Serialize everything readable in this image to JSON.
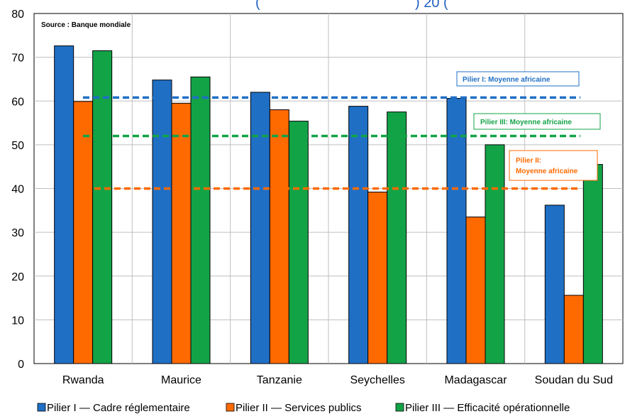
{
  "chart_data": {
    "type": "bar",
    "title_fragment_left": "(",
    "title_fragment_right": ") 20  (",
    "source_note": "Source : Banque mondiale",
    "categories": [
      "Rwanda",
      "Maurice",
      "Tanzanie",
      "Seychelles",
      "Madagascar",
      "Soudan du Sud"
    ],
    "ylim": [
      0,
      80
    ],
    "yticks": [
      0,
      10,
      20,
      30,
      40,
      50,
      60,
      70,
      80
    ],
    "grid": true,
    "series": [
      {
        "name": "Pilier I — Cadre réglementaire",
        "color": "#1f6fc5",
        "values": [
          72.6,
          64.8,
          62.0,
          58.8,
          60.6,
          36.2
        ]
      },
      {
        "name": "Pilier II — Services publics",
        "color": "#ff6a00",
        "values": [
          59.9,
          59.5,
          58.0,
          39.2,
          33.5,
          15.6
        ]
      },
      {
        "name": "Pilier III — Efficacité opérationnelle",
        "color": "#13a347",
        "values": [
          71.5,
          65.5,
          55.4,
          57.5,
          50.0,
          45.5
        ]
      }
    ],
    "reference_lines": [
      {
        "label": "Pilier I: Moyenne africaine",
        "value": 60.8,
        "color": "#1f6fc5"
      },
      {
        "label": "Pilier III: Moyenne africaine",
        "value": 52.0,
        "color": "#13a347"
      },
      {
        "label_line1": "Pilier II:",
        "label_line2": "Moyenne africaine",
        "value": 40.0,
        "color": "#ff6a00"
      }
    ],
    "legend_position": "bottom"
  }
}
